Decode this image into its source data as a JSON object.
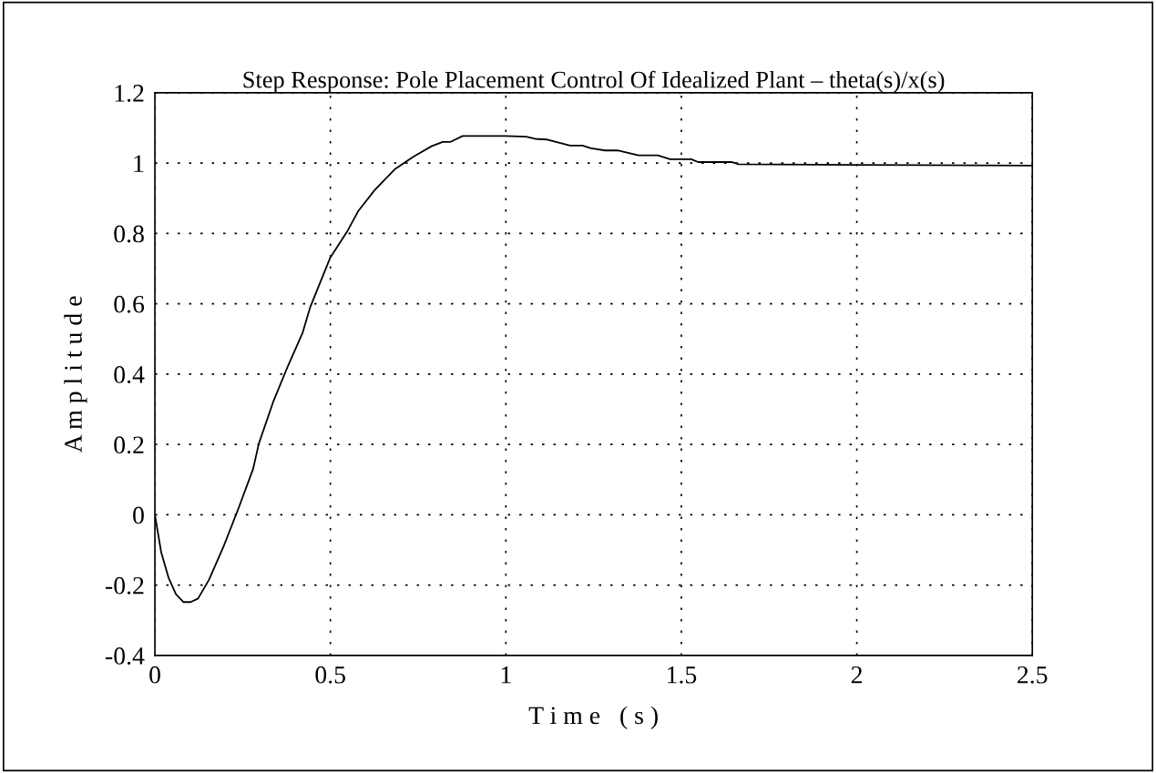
{
  "chart_data": {
    "type": "line",
    "title": "Step Response: Pole Placement Control Of Idealized Plant – theta(s)/x(s)",
    "xlabel": "T i m e   ( s )",
    "ylabel": "A m p l i t u d e",
    "xlim": [
      0,
      2.5
    ],
    "xticks": [
      0,
      0.5,
      1,
      1.5,
      2,
      2.5
    ],
    "ylim": [
      -0.4,
      1.2
    ],
    "yticks": [
      -0.4,
      -0.2,
      0,
      0.2,
      0.4,
      0.6,
      0.8,
      1,
      1.2
    ],
    "grid": true,
    "line_style": "solid",
    "series": [
      {
        "color": "#000000",
        "x": [
          0,
          0.018,
          0.039,
          0.06,
          0.081,
          0.102,
          0.123,
          0.154,
          0.196,
          0.238,
          0.28,
          0.296,
          0.337,
          0.379,
          0.421,
          0.442,
          0.5,
          0.547,
          0.579,
          0.626,
          0.683,
          0.736,
          0.788,
          0.82,
          0.841,
          0.877,
          1.0,
          1.058,
          1.083,
          1.118,
          1.148,
          1.183,
          1.218,
          1.243,
          1.283,
          1.318,
          1.378,
          1.433,
          1.468,
          1.528,
          1.548,
          1.643,
          1.663,
          2.0,
          2.5
        ],
        "values": [
          0,
          -0.107,
          -0.179,
          -0.226,
          -0.248,
          -0.248,
          -0.238,
          -0.185,
          -0.089,
          0.018,
          0.131,
          0.202,
          0.321,
          0.423,
          0.518,
          0.589,
          0.732,
          0.804,
          0.863,
          0.923,
          0.982,
          1.018,
          1.048,
          1.06,
          1.06,
          1.077,
          1.077,
          1.075,
          1.069,
          1.067,
          1.059,
          1.05,
          1.05,
          1.042,
          1.036,
          1.036,
          1.022,
          1.022,
          1.011,
          1.011,
          1.003,
          1.003,
          0.997,
          0.995,
          0.993
        ]
      }
    ]
  }
}
